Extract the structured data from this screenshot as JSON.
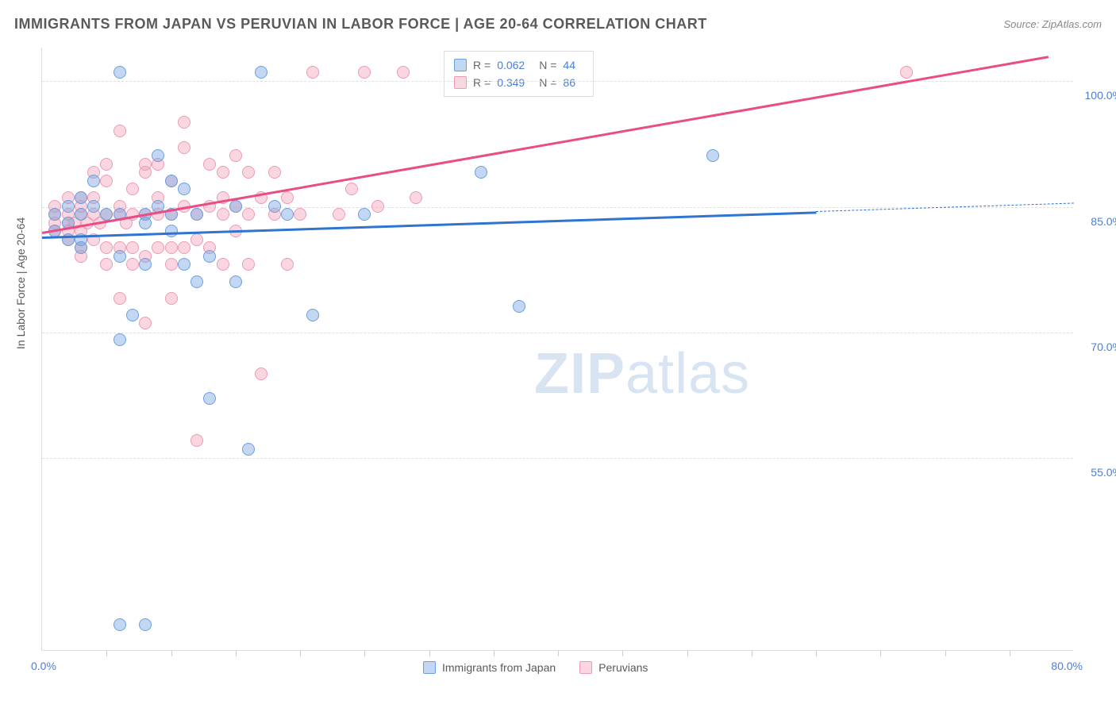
{
  "header": {
    "title": "IMMIGRANTS FROM JAPAN VS PERUVIAN IN LABOR FORCE | AGE 20-64 CORRELATION CHART",
    "source": "Source: ZipAtlas.com"
  },
  "axes": {
    "y_label": "In Labor Force | Age 20-64",
    "x_min": 0.0,
    "x_max": 80.0,
    "y_min": 32.0,
    "y_max": 104.0,
    "x_origin_label": "0.0%",
    "x_end_label": "80.0%",
    "y_ticks": [
      55.0,
      70.0,
      85.0,
      100.0
    ],
    "y_tick_labels": [
      "55.0%",
      "70.0%",
      "85.0%",
      "100.0%"
    ],
    "x_tick_positions": [
      5,
      10,
      15,
      20,
      25,
      30,
      35,
      40,
      45,
      50,
      55,
      60,
      65,
      70,
      75
    ]
  },
  "colors": {
    "blue_fill": "rgba(122,167,226,0.45)",
    "blue_stroke": "#6b9fe0",
    "pink_fill": "rgba(244,164,186,0.45)",
    "pink_stroke": "#ec9bb3",
    "blue_line": "#2e74d0",
    "pink_line": "#e94d82",
    "grid": "#e0e0e0",
    "tick_text": "#4a7fd6"
  },
  "series": [
    {
      "id": "japan",
      "label": "Immigrants from Japan",
      "color_key": "blue",
      "r": "0.062",
      "n": "44",
      "trend": {
        "x1": 0,
        "y1": 81.5,
        "x2": 60,
        "y2": 84.5,
        "x2_ext": 80,
        "y2_ext": 85.5
      },
      "points": [
        [
          1,
          84
        ],
        [
          1,
          82
        ],
        [
          2,
          85
        ],
        [
          2,
          83
        ],
        [
          3,
          84
        ],
        [
          3,
          86
        ],
        [
          3,
          81
        ],
        [
          4,
          85
        ],
        [
          4,
          88
        ],
        [
          5,
          84
        ],
        [
          6,
          84
        ],
        [
          6,
          101
        ],
        [
          6,
          79
        ],
        [
          6,
          69
        ],
        [
          7,
          72
        ],
        [
          8,
          84
        ],
        [
          8,
          83
        ],
        [
          8,
          78
        ],
        [
          9,
          85
        ],
        [
          9,
          91
        ],
        [
          10,
          82
        ],
        [
          10,
          88
        ],
        [
          10,
          84
        ],
        [
          11,
          87
        ],
        [
          11,
          78
        ],
        [
          12,
          84
        ],
        [
          12,
          76
        ],
        [
          13,
          79
        ],
        [
          13,
          62
        ],
        [
          15,
          85
        ],
        [
          15,
          76
        ],
        [
          16,
          56
        ],
        [
          17,
          101
        ],
        [
          18,
          85
        ],
        [
          19,
          84
        ],
        [
          21,
          72
        ],
        [
          25,
          84
        ],
        [
          34,
          89
        ],
        [
          37,
          73
        ],
        [
          52,
          91
        ],
        [
          6,
          35
        ],
        [
          8,
          35
        ],
        [
          3,
          80
        ],
        [
          2,
          81
        ]
      ]
    },
    {
      "id": "peruvian",
      "label": "Peruvians",
      "color_key": "pink",
      "r": "0.349",
      "n": "86",
      "trend": {
        "x1": 0,
        "y1": 82.0,
        "x2": 78,
        "y2": 103.0
      },
      "points": [
        [
          1,
          83
        ],
        [
          1,
          84
        ],
        [
          1,
          82
        ],
        [
          1,
          85
        ],
        [
          2,
          83
        ],
        [
          2,
          84
        ],
        [
          2,
          86
        ],
        [
          2,
          82
        ],
        [
          2,
          81
        ],
        [
          2.5,
          83
        ],
        [
          3,
          84
        ],
        [
          3,
          85
        ],
        [
          3,
          86
        ],
        [
          3,
          82
        ],
        [
          3,
          80
        ],
        [
          3.5,
          83
        ],
        [
          4,
          84
        ],
        [
          4,
          86
        ],
        [
          4,
          89
        ],
        [
          4,
          81
        ],
        [
          4.5,
          83
        ],
        [
          5,
          84
        ],
        [
          5,
          88
        ],
        [
          5,
          90
        ],
        [
          5,
          80
        ],
        [
          5,
          78
        ],
        [
          6,
          84
        ],
        [
          6,
          85
        ],
        [
          6,
          94
        ],
        [
          6,
          80
        ],
        [
          6.5,
          83
        ],
        [
          7,
          84
        ],
        [
          7,
          87
        ],
        [
          7,
          80
        ],
        [
          7,
          78
        ],
        [
          8,
          84
        ],
        [
          8,
          89
        ],
        [
          8,
          90
        ],
        [
          8,
          79
        ],
        [
          8,
          71
        ],
        [
          9,
          84
        ],
        [
          9,
          86
        ],
        [
          9,
          80
        ],
        [
          9,
          90
        ],
        [
          10,
          84
        ],
        [
          10,
          88
        ],
        [
          10,
          78
        ],
        [
          10,
          80
        ],
        [
          11,
          85
        ],
        [
          11,
          92
        ],
        [
          11,
          95
        ],
        [
          11,
          80
        ],
        [
          12,
          84
        ],
        [
          12,
          81
        ],
        [
          12,
          57
        ],
        [
          13,
          85
        ],
        [
          13,
          90
        ],
        [
          13,
          80
        ],
        [
          14,
          84
        ],
        [
          14,
          89
        ],
        [
          14,
          86
        ],
        [
          14,
          78
        ],
        [
          15,
          85
        ],
        [
          15,
          82
        ],
        [
          15,
          91
        ],
        [
          16,
          84
        ],
        [
          16,
          78
        ],
        [
          16,
          89
        ],
        [
          17,
          86
        ],
        [
          17,
          65
        ],
        [
          18,
          84
        ],
        [
          18,
          89
        ],
        [
          19,
          78
        ],
        [
          19,
          86
        ],
        [
          20,
          84
        ],
        [
          21,
          101
        ],
        [
          23,
          84
        ],
        [
          24,
          87
        ],
        [
          25,
          101
        ],
        [
          26,
          85
        ],
        [
          28,
          101
        ],
        [
          29,
          86
        ],
        [
          10,
          74
        ],
        [
          6,
          74
        ],
        [
          67,
          101
        ],
        [
          3,
          79
        ]
      ]
    }
  ],
  "watermark": {
    "zip": "ZIP",
    "atlas": "atlas"
  },
  "legend": {
    "japan": "Immigrants from Japan",
    "peruvian": "Peruvians"
  }
}
